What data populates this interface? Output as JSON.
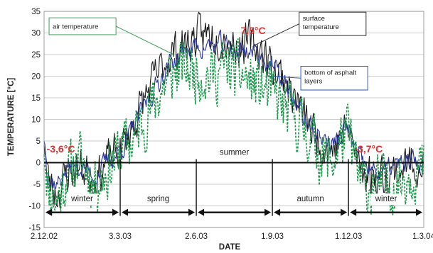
{
  "chart_data": {
    "type": "line",
    "xlabel": "DATE",
    "ylabel": "TEMPERATURE [°C]",
    "xlim": [
      0,
      454
    ],
    "ylim": [
      -15,
      35
    ],
    "x_ticks": [
      {
        "label": "2.12.02",
        "day": 0
      },
      {
        "label": "3.3.03",
        "day": 91
      },
      {
        "label": "2.6.03",
        "day": 182
      },
      {
        "label": "1.9.03",
        "day": 273
      },
      {
        "label": "1.12.03",
        "day": 364
      },
      {
        "label": "1.3.04",
        "day": 454
      }
    ],
    "y_ticks": [
      35,
      30,
      25,
      20,
      15,
      10,
      5,
      0,
      -5,
      -10,
      -15
    ],
    "grid": "horizontal",
    "colors": {
      "surface": "#1a1a1a",
      "bottom": "#2a3598",
      "air": "#1a9a4a",
      "annotation": "#e03030",
      "label_box_air": "#3aa05a",
      "label_box_surface": "#333333",
      "label_box_bottom": "#2a5ab0"
    },
    "series": [
      {
        "name": "surface temperature",
        "style": "solid",
        "color": "#1a1a1a"
      },
      {
        "name": "bottom of asphalt layers",
        "style": "solid",
        "color": "#2a3598"
      },
      {
        "name": "air temperature",
        "style": "dashed",
        "color": "#1a9a4a"
      }
    ],
    "seasonal_curve": {
      "days": [
        0,
        5,
        15,
        30,
        45,
        60,
        75,
        91,
        105,
        120,
        135,
        150,
        165,
        182,
        200,
        215,
        230,
        245,
        260,
        273,
        285,
        300,
        315,
        330,
        345,
        355,
        364,
        375,
        390,
        405,
        420,
        440,
        454
      ],
      "surface": [
        6,
        -4,
        -7,
        -2,
        -1,
        -4,
        0,
        3,
        8,
        15,
        20,
        25,
        27,
        29,
        30,
        29,
        27,
        28,
        26,
        22,
        20,
        15,
        9,
        5,
        3,
        6,
        8,
        0,
        -3,
        -3,
        -2,
        0,
        0
      ],
      "bottom": [
        6,
        -3,
        -5,
        -1,
        -1,
        -3,
        0,
        3,
        7,
        13,
        18,
        23,
        25,
        27,
        27,
        27,
        26,
        26,
        25,
        22,
        19,
        14,
        9,
        6,
        4,
        6,
        8,
        1,
        -2,
        -2,
        -1,
        0,
        0
      ],
      "air": [
        5,
        -6,
        -9,
        -2,
        1,
        -5,
        -2,
        3,
        5,
        10,
        15,
        20,
        22,
        21,
        20,
        22,
        21,
        19,
        17,
        16,
        13,
        10,
        7,
        2,
        0,
        5,
        7,
        -3,
        -6,
        -5,
        -5,
        -2,
        -1
      ]
    },
    "seasons": [
      {
        "label": "winter",
        "start": 0,
        "end": 91
      },
      {
        "label": "spring",
        "start": 91,
        "end": 182
      },
      {
        "label": "summer",
        "start": 182,
        "end": 273
      },
      {
        "label": "autumn",
        "start": 273,
        "end": 364
      },
      {
        "label": "winter",
        "start": 364,
        "end": 454
      }
    ],
    "season_label_y": [
      -8.3,
      -8.3,
      2.5,
      -8.3,
      -8.3
    ],
    "season_arrow_y": -11.5,
    "annotations": [
      {
        "text": "-3,6°C",
        "day": 20,
        "y": 3.2
      },
      {
        "text": "7,5°C",
        "day": 250,
        "y": 30.6
      },
      {
        "text": "-3,7°C",
        "day": 388,
        "y": 3.2
      }
    ],
    "series_labels": [
      {
        "series": "air temperature",
        "lines": [
          "air temperature"
        ],
        "box_day": [
          6,
          86
        ],
        "box_y": [
          33.5,
          29.6
        ],
        "leader_to": [
          155,
          25
        ]
      },
      {
        "series": "surface temperature",
        "lines": [
          "surface",
          "temperature"
        ],
        "box_day": [
          305,
          385
        ],
        "box_y": [
          34.8,
          29.4
        ],
        "leader_to": [
          250,
          27
        ]
      },
      {
        "series": "bottom of asphalt layers",
        "lines": [
          "bottom of asphalt",
          "layers"
        ],
        "box_day": [
          307,
          387
        ],
        "box_y": [
          22.3,
          16.8
        ],
        "leader_to": [
          268,
          20
        ]
      }
    ]
  }
}
